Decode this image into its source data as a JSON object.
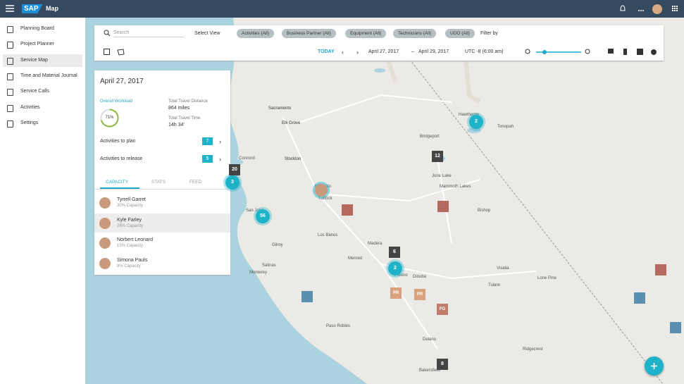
{
  "header": {
    "logo": "SAP",
    "title": "Map"
  },
  "sidebar": {
    "items": [
      "Planning Board",
      "Project Planner",
      "Service Map",
      "Time and Material Journal",
      "Service Calls",
      "Activities",
      "Settings"
    ]
  },
  "toolbar": {
    "search": "Search",
    "select_view": "Select View",
    "filters": [
      "Activities (All)",
      "Business Partner (All)",
      "Equipment (All)",
      "Technicians (All)",
      "UDO (All)"
    ],
    "filter_by": "Filter by",
    "today": "TODAY",
    "date_from": "April 27, 2017",
    "date_sep": "–",
    "date_to": "April 29, 2017",
    "timezone": "UTC -8 (6:00 am)"
  },
  "panel": {
    "date": "April 27, 2017",
    "workload_label": "Overall Workload",
    "workload": "71%",
    "distance_label": "Total Travel Distance",
    "distance": "864 miles",
    "time_label": "Total Travel Time",
    "time": "14h 34'",
    "rows": [
      {
        "label": "Activities to plan",
        "count": "7"
      },
      {
        "label": "Activities to release",
        "count": "5"
      }
    ],
    "tabs": [
      "CAPACITY",
      "STATS",
      "FEED"
    ],
    "people": [
      {
        "name": "Tyrrell Garret",
        "capacity": "30% Capacity"
      },
      {
        "name": "Kyle Farley",
        "capacity": "28% Capacity"
      },
      {
        "name": "Norbert Leonard",
        "capacity": "15% Capacity"
      },
      {
        "name": "Simona Pauls",
        "capacity": "9% Capacity"
      }
    ]
  },
  "map": {
    "places": [
      "Sacramento",
      "Elk Grove",
      "Stockton",
      "Concord",
      "San Jose",
      "Gilroy",
      "Salinas",
      "Monterey",
      "Los Banos",
      "Modesto",
      "Turlock",
      "Merced",
      "Madera",
      "Fresno",
      "Visalia",
      "Tulare",
      "Bakersfield",
      "Bridgeport",
      "June Lake",
      "Mammoth Lakes",
      "Bishop",
      "Lone Pine",
      "Hawthorne",
      "Tonopah",
      "Paso Robles",
      "Delano",
      "Ridgecrest",
      "Dinuba"
    ],
    "markers": [
      "2",
      "3",
      "56",
      "2"
    ],
    "counts": [
      "12",
      "20",
      "6",
      "8"
    ],
    "badges": [
      "PR",
      "PR",
      "FG"
    ]
  }
}
